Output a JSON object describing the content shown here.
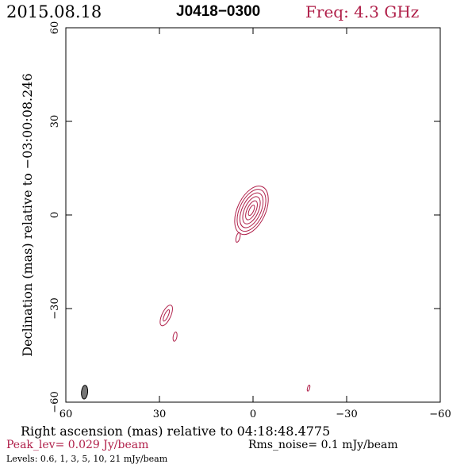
{
  "header": {
    "date": "2015.08.18",
    "source": "J0418−0300",
    "freq": "Freq: 4.3 GHz"
  },
  "footer": {
    "peak": "Peak_lev=  0.029 Jy/beam",
    "rms": "Rms_noise=  0.1 mJy/beam",
    "levels": "Levels: 0.6,   1,   3,   5,   10,   21 mJy/beam"
  },
  "colors": {
    "accent": "#b0204a",
    "frame": "#000000",
    "beam_fill": "#777777"
  },
  "chart_data": {
    "type": "contour",
    "xlabel": "Right ascension (mas) relative to 04:18:48.4775",
    "ylabel": "Declination (mas) relative to −03:00:08.246",
    "xlim": [
      60,
      -60
    ],
    "ylim": [
      -60,
      60
    ],
    "xticks": [
      60,
      30,
      0,
      -30,
      -60
    ],
    "yticks": [
      -60,
      -30,
      0,
      30,
      60
    ],
    "xtick_labels": [
      "60",
      "30",
      "0",
      "−30",
      "−60"
    ],
    "ytick_labels": [
      "−60",
      "−30",
      "0",
      "30",
      "60"
    ],
    "levels_mJy": [
      0.6,
      1,
      3,
      5,
      10,
      21
    ],
    "components": [
      {
        "name": "core",
        "x": 0.5,
        "y": 1.5,
        "contours": [
          {
            "rx": 4.5,
            "ry": 8.3,
            "angle": 25
          },
          {
            "rx": 3.8,
            "ry": 7.2,
            "angle": 25
          },
          {
            "rx": 3.0,
            "ry": 6.0,
            "angle": 25
          },
          {
            "rx": 2.2,
            "ry": 4.7,
            "angle": 25
          },
          {
            "rx": 1.4,
            "ry": 3.3,
            "angle": 25
          },
          {
            "rx": 0.7,
            "ry": 1.8,
            "angle": 25
          }
        ]
      },
      {
        "name": "blob-1",
        "x": 4.8,
        "y": -7.2,
        "contours": [
          {
            "rx": 0.6,
            "ry": 1.6,
            "angle": 15
          }
        ]
      },
      {
        "name": "blob-2",
        "x": 27.8,
        "y": -32.2,
        "contours": [
          {
            "rx": 1.4,
            "ry": 3.6,
            "angle": 25
          },
          {
            "rx": 0.6,
            "ry": 2.0,
            "angle": 25
          }
        ]
      },
      {
        "name": "blob-3",
        "x": 25.0,
        "y": -39.0,
        "contours": [
          {
            "rx": 0.6,
            "ry": 1.5,
            "angle": 10
          }
        ]
      },
      {
        "name": "blob-4",
        "x": -17.8,
        "y": -55.5,
        "contours": [
          {
            "rx": 0.35,
            "ry": 1.0,
            "angle": 15
          }
        ]
      }
    ],
    "beam": {
      "x": 54.0,
      "y": -56.8,
      "rx": 1.0,
      "ry": 2.2,
      "angle": 5
    }
  }
}
